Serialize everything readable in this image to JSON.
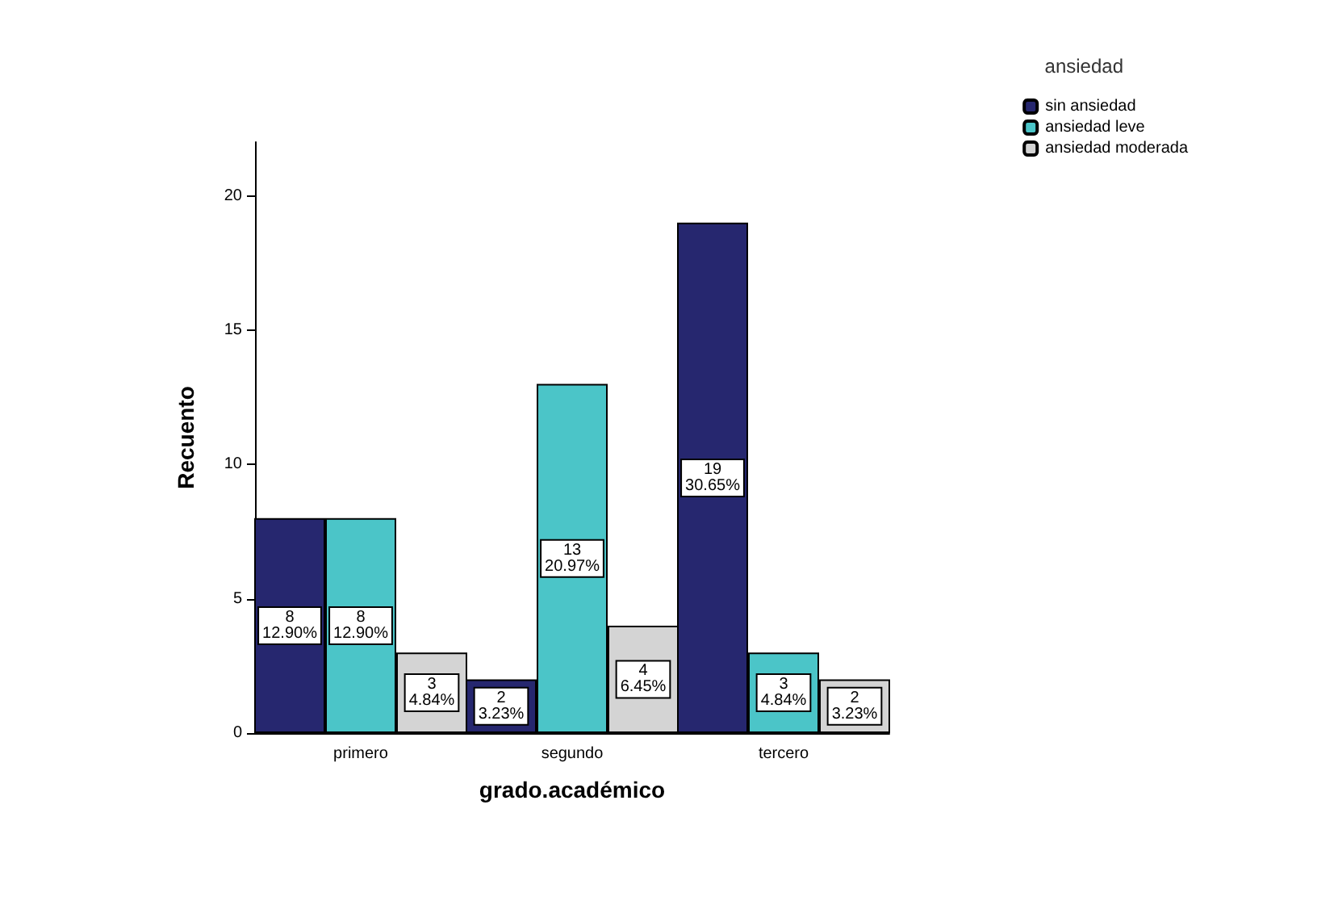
{
  "chart_data": {
    "type": "bar",
    "xlabel": "grado.académico",
    "ylabel": "Recuento",
    "legend_title": "ansiedad",
    "categories": [
      "primero",
      "segundo",
      "tercero"
    ],
    "series": [
      {
        "name": "sin ansiedad",
        "color": "#26276f",
        "values": [
          8,
          2,
          19
        ],
        "value_labels": [
          "8\n12.90%",
          "2\n3.23%",
          "19\n30.65%"
        ]
      },
      {
        "name": "ansiedad leve",
        "color": "#4bc5c8",
        "values": [
          8,
          13,
          3
        ],
        "value_labels": [
          "8\n12.90%",
          "13\n20.97%",
          "3\n4.84%"
        ]
      },
      {
        "name": "ansiedad moderada",
        "color": "#d4d4d4",
        "values": [
          3,
          4,
          2
        ],
        "value_labels": [
          "3\n4.84%",
          "4\n6.45%",
          "2\n3.23%"
        ]
      }
    ],
    "ylim": [
      0,
      22
    ],
    "yticks": [
      0,
      5,
      10,
      15,
      20
    ],
    "grid": false,
    "legend": "top right"
  }
}
